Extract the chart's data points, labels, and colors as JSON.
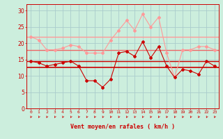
{
  "x": [
    0,
    1,
    2,
    3,
    4,
    5,
    6,
    7,
    8,
    9,
    10,
    11,
    12,
    13,
    14,
    15,
    16,
    17,
    18,
    19,
    20,
    21,
    22,
    23
  ],
  "wind_rafales": [
    22,
    21,
    18,
    18,
    18.5,
    19.5,
    19,
    17,
    17,
    17,
    21,
    24,
    27,
    24,
    29,
    25,
    28,
    17,
    9.5,
    18,
    18,
    19,
    19,
    18
  ],
  "wind_speed": [
    14.5,
    14,
    13,
    13.5,
    14,
    14.5,
    13,
    8.5,
    8.5,
    6.5,
    9,
    17,
    17.5,
    16,
    20.5,
    15.5,
    19,
    13,
    9.5,
    12,
    11.5,
    10.5,
    14.5,
    13
  ],
  "hline_light1": 22.0,
  "hline_light2": 18.0,
  "hline_dark1": 14.5,
  "hline_dark2": 12.5,
  "bg_color": "#cceedd",
  "grid_color": "#aacccc",
  "color_dark_red": "#cc0000",
  "color_light_pink": "#ff9999",
  "color_med_pink": "#ee6666",
  "xlabel": "Vent moyen/en rafales ( km/h )",
  "yticks": [
    0,
    5,
    10,
    15,
    20,
    25,
    30
  ],
  "xticks": [
    0,
    1,
    2,
    3,
    4,
    5,
    6,
    7,
    8,
    9,
    10,
    11,
    12,
    13,
    14,
    15,
    16,
    17,
    18,
    19,
    20,
    21,
    22,
    23
  ],
  "xlim": [
    -0.5,
    23.5
  ],
  "ylim": [
    0,
    32
  ]
}
